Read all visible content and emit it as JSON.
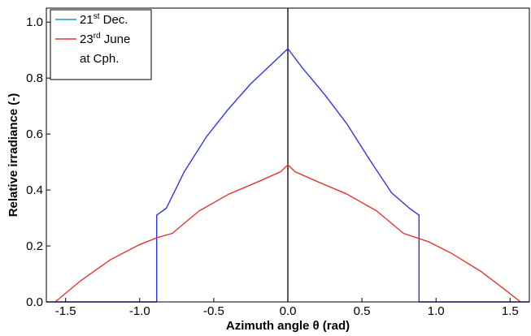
{
  "chart_data": {
    "type": "line",
    "xlabel": "Azimuth angle θ  (rad)",
    "ylabel": "Relative irradiance (-)",
    "xlim": [
      -1.63,
      1.63
    ],
    "ylim": [
      0.0,
      1.05
    ],
    "xticks": [
      -1.5,
      -1.0,
      -0.5,
      0.0,
      0.5,
      1.0,
      1.5
    ],
    "xtick_labels": [
      "-1.5",
      "-1.0",
      "-0.5",
      "0.0",
      "0.5",
      "1.0",
      "1.5"
    ],
    "yticks": [
      0.0,
      0.2,
      0.4,
      0.6,
      0.8,
      1.0
    ],
    "ytick_labels": [
      "0.0",
      "0.2",
      "0.4",
      "0.6",
      "0.8",
      "1.0"
    ],
    "grid": false,
    "legend_placement": "top-left",
    "vertical_line": {
      "x": 0.0,
      "color": "#000000"
    },
    "legend": {
      "entries": [
        {
          "pre": "21",
          "sup": "st",
          "post": " Dec.",
          "color": "#1a9ad6"
        },
        {
          "pre": "23",
          "sup": "rd",
          "post": " June",
          "color": "#ee3333"
        },
        {
          "pre": "at Cph.",
          "sup": "",
          "post": "",
          "color": ""
        }
      ]
    },
    "series": [
      {
        "color": "#3333ee",
        "x": [
          -1.63,
          -0.885,
          -0.885,
          -0.82,
          -0.7,
          -0.55,
          -0.4,
          -0.25,
          -0.1,
          0.0,
          0.1,
          0.25,
          0.4,
          0.55,
          0.7,
          0.82,
          0.885,
          0.885,
          1.63
        ],
        "y": [
          0.0,
          0.0,
          0.31,
          0.335,
          0.465,
          0.59,
          0.69,
          0.78,
          0.855,
          0.905,
          0.835,
          0.74,
          0.635,
          0.51,
          0.39,
          0.335,
          0.31,
          0.0,
          0.0
        ]
      },
      {
        "color": "#ee3333",
        "x": [
          -1.57,
          -1.4,
          -1.2,
          -1.0,
          -0.88,
          -0.78,
          -0.6,
          -0.4,
          -0.2,
          -0.05,
          0.0,
          0.05,
          0.2,
          0.4,
          0.6,
          0.78,
          0.95,
          1.1,
          1.3,
          1.45,
          1.57
        ],
        "y": [
          0.0,
          0.075,
          0.15,
          0.205,
          0.23,
          0.245,
          0.325,
          0.385,
          0.43,
          0.465,
          0.49,
          0.465,
          0.43,
          0.385,
          0.325,
          0.245,
          0.215,
          0.175,
          0.11,
          0.05,
          0.0
        ]
      }
    ]
  }
}
